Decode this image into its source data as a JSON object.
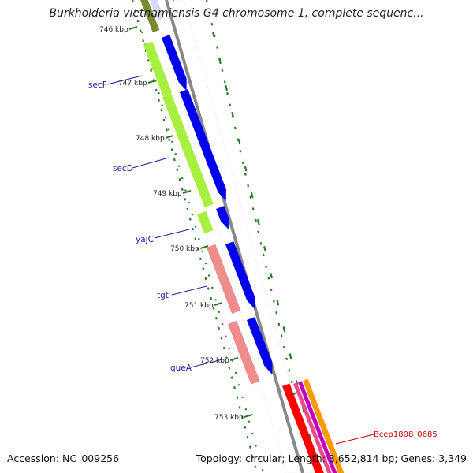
{
  "title": "Burkholderia vietnamiensis G4 chromosome 1, complete sequenc...",
  "footer": {
    "accession": "Accession: NC_009256",
    "summary": "Topology: circular; Length: 3,652,814 bp; Genes: 3,349"
  },
  "kbp_labels": [
    "746 kbp",
    "747 kbp",
    "748 kbp",
    "749 kbp",
    "750 kbp",
    "751 kbp",
    "752 kbp",
    "753 kbp"
  ],
  "genes": [
    {
      "name": "secF",
      "color": "#a8f040"
    },
    {
      "name": "secD",
      "color": "#a8f040"
    },
    {
      "name": "yajC",
      "color": "#a8f040"
    },
    {
      "name": "tgt",
      "color": "#f08c8c"
    },
    {
      "name": "queA",
      "color": "#f08c8c"
    },
    {
      "name": "Bcep1808_0685",
      "color": "#ff0000"
    }
  ],
  "colors": {
    "cds": "#0000ee",
    "gene_green": "#a8f040",
    "gene_red": "#f08c8c",
    "tick": "#2a7a2a",
    "backbone": "#888888",
    "label": "#1a1a9a",
    "red_label": "#cc0000"
  }
}
